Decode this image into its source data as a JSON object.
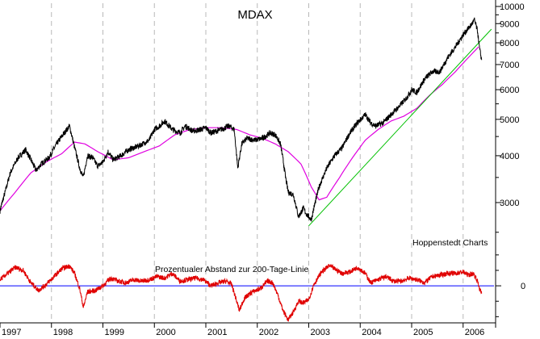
{
  "colors": {
    "price": "#000000",
    "ma200": "#e000e0",
    "trend": "#00c000",
    "oscillator": "#e00000",
    "zero_line": "#0000ff",
    "grid": "#b8b8b8",
    "axis": "#000000"
  },
  "chart_data": [
    {
      "type": "line",
      "title": "MDAX",
      "source_label": "Hoppenstedt Charts",
      "x_tick_labels": [
        "1997",
        "1998",
        "1999",
        "2000",
        "2001",
        "2002",
        "2003",
        "2004",
        "2005",
        "2006"
      ],
      "xlim": [
        1997.0,
        2006.6
      ],
      "y_scale": "log",
      "ylim": [
        2400,
        10200
      ],
      "y_tick_labels": [
        "10000",
        "9000",
        "8000",
        "7000",
        "6000",
        "5000",
        "4000",
        "3000"
      ],
      "y_ticks": [
        10000,
        9000,
        8000,
        7000,
        6000,
        5000,
        4000,
        3000
      ],
      "y_minor_ticks": [
        2500,
        3500,
        4500,
        5500,
        6500,
        7500,
        8500,
        9500
      ],
      "series": [
        {
          "name": "MDAX",
          "x": [
            1997.0,
            1997.1,
            1997.2,
            1997.35,
            1997.5,
            1997.6,
            1997.7,
            1997.8,
            1997.95,
            1998.1,
            1998.25,
            1998.35,
            1998.45,
            1998.55,
            1998.62,
            1998.7,
            1998.8,
            1998.9,
            1999.0,
            1999.1,
            1999.2,
            1999.35,
            1999.5,
            1999.7,
            1999.9,
            2000.0,
            2000.1,
            2000.2,
            2000.35,
            2000.5,
            2000.6,
            2000.75,
            2000.9,
            2001.0,
            2001.1,
            2001.3,
            2001.45,
            2001.55,
            2001.62,
            2001.7,
            2001.8,
            2001.95,
            2002.1,
            2002.25,
            2002.35,
            2002.45,
            2002.55,
            2002.6,
            2002.7,
            2002.8,
            2002.9,
            2002.95,
            2003.05,
            2003.2,
            2003.35,
            2003.5,
            2003.65,
            2003.8,
            2003.95,
            2004.1,
            2004.2,
            2004.3,
            2004.45,
            2004.6,
            2004.75,
            2004.9,
            2005.0,
            2005.1,
            2005.25,
            2005.4,
            2005.55,
            2005.7,
            2005.85,
            2006.0,
            2006.15,
            2006.22,
            2006.28,
            2006.32,
            2006.36
          ],
          "values": [
            2850,
            3200,
            3600,
            3950,
            4150,
            3900,
            3650,
            3800,
            3950,
            4300,
            4600,
            4800,
            4200,
            3700,
            3500,
            4000,
            3950,
            3750,
            3850,
            4100,
            3900,
            4000,
            4150,
            4250,
            4400,
            4700,
            4800,
            4950,
            4700,
            4600,
            4800,
            4650,
            4700,
            4750,
            4600,
            4700,
            4800,
            4700,
            3700,
            4300,
            4450,
            4400,
            4450,
            4600,
            4550,
            4300,
            3500,
            3200,
            3150,
            2750,
            2900,
            2800,
            2700,
            3300,
            3700,
            4000,
            4200,
            4600,
            4900,
            5150,
            4900,
            4800,
            4900,
            5150,
            5400,
            5700,
            6000,
            5900,
            6400,
            6700,
            6700,
            7300,
            7800,
            8400,
            8900,
            9200,
            8600,
            7700,
            7200
          ]
        },
        {
          "name": "200-Tage-Linie",
          "x": [
            1997.0,
            1997.3,
            1997.6,
            1997.9,
            1998.2,
            1998.45,
            1998.65,
            1998.9,
            1999.2,
            1999.5,
            1999.8,
            2000.1,
            2000.4,
            2000.7,
            2001.0,
            2001.3,
            2001.6,
            2001.85,
            2002.1,
            2002.35,
            2002.6,
            2002.85,
            2003.05,
            2003.2,
            2003.35,
            2003.6,
            2003.85,
            2004.1,
            2004.35,
            2004.6,
            2004.85,
            2005.1,
            2005.35,
            2005.6,
            2005.85,
            2006.1,
            2006.3
          ],
          "values": [
            2850,
            3200,
            3600,
            3850,
            4050,
            4350,
            4300,
            4100,
            3900,
            3950,
            4100,
            4250,
            4550,
            4700,
            4750,
            4750,
            4700,
            4550,
            4450,
            4300,
            4100,
            3800,
            3300,
            3050,
            3100,
            3500,
            3950,
            4400,
            4700,
            4950,
            5100,
            5350,
            5800,
            6200,
            6700,
            7300,
            7800
          ]
        },
        {
          "name": "Trendlinie",
          "x": [
            2003.0,
            2006.55
          ],
          "values": [
            2600,
            8700
          ]
        }
      ]
    },
    {
      "type": "line",
      "title": "Prozentualer Abstand zur 200-Tage-Linie",
      "y_tick_labels": [
        "0"
      ],
      "ylim": [
        -24,
        22
      ],
      "series": [
        {
          "name": "Prozentualer Abstand zur 200-Tage-Linie",
          "x": [
            1997.0,
            1997.15,
            1997.3,
            1997.45,
            1997.6,
            1997.75,
            1997.9,
            1998.05,
            1998.2,
            1998.35,
            1998.45,
            1998.55,
            1998.62,
            1998.7,
            1998.85,
            1999.0,
            1999.15,
            1999.3,
            1999.45,
            1999.6,
            1999.75,
            1999.9,
            2000.05,
            2000.2,
            2000.35,
            2000.5,
            2000.65,
            2000.8,
            2000.95,
            2001.1,
            2001.25,
            2001.4,
            2001.5,
            2001.6,
            2001.65,
            2001.75,
            2001.9,
            2002.05,
            2002.2,
            2002.3,
            2002.4,
            2002.5,
            2002.6,
            2002.7,
            2002.8,
            2002.9,
            2003.0,
            2003.1,
            2003.25,
            2003.4,
            2003.5,
            2003.65,
            2003.8,
            2003.95,
            2004.1,
            2004.2,
            2004.35,
            2004.5,
            2004.65,
            2004.8,
            2004.95,
            2005.1,
            2005.25,
            2005.4,
            2005.55,
            2005.7,
            2005.85,
            2006.0,
            2006.1,
            2006.2,
            2006.27,
            2006.32,
            2006.36
          ],
          "values": [
            4,
            8,
            12,
            10,
            2,
            -3,
            1,
            6,
            11,
            13,
            8,
            -2,
            -14,
            -4,
            -3,
            0,
            5,
            3,
            2,
            4,
            3,
            4,
            6,
            5,
            8,
            3,
            4,
            5,
            4,
            0,
            2,
            3,
            1,
            -10,
            -16,
            -8,
            -4,
            -2,
            3,
            2,
            -6,
            -16,
            -22,
            -17,
            -10,
            -11,
            -9,
            1,
            9,
            13,
            11,
            8,
            9,
            12,
            8,
            2,
            4,
            6,
            3,
            3,
            5,
            4,
            2,
            6,
            7,
            8,
            8,
            9,
            7,
            8,
            4,
            -2,
            -5
          ]
        }
      ]
    }
  ]
}
